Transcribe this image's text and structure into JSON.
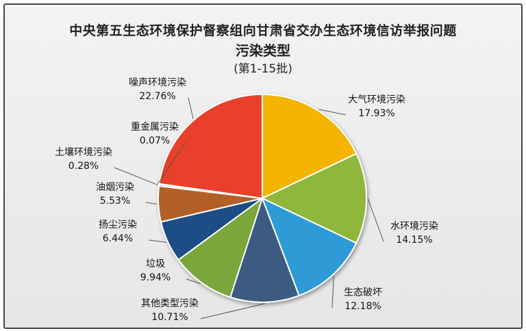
{
  "chart_data": {
    "type": "pie",
    "title": "中央第五生态环境保护督察组向甘肃省交办生态环境信访举报问题",
    "subtitle": "污染类型",
    "note": "(第1-15批)",
    "slices": [
      {
        "name": "大气环境污染",
        "value": 17.93,
        "label": "17.93%",
        "color": "#f4b400"
      },
      {
        "name": "水环境污染",
        "value": 14.15,
        "label": "14.15%",
        "color": "#8fb73a"
      },
      {
        "name": "生态破坏",
        "value": 12.18,
        "label": "12.18%",
        "color": "#2e9bd6"
      },
      {
        "name": "其他类型污染",
        "value": 10.71,
        "label": "10.71%",
        "color": "#3d5a80"
      },
      {
        "name": "垃圾",
        "value": 9.94,
        "label": "9.94%",
        "color": "#7aa63a"
      },
      {
        "name": "扬尘污染",
        "value": 6.44,
        "label": "6.44%",
        "color": "#1f4e86"
      },
      {
        "name": "油烟污染",
        "value": 5.53,
        "label": "5.53%",
        "color": "#b36128"
      },
      {
        "name": "土壤环境污染",
        "value": 0.28,
        "label": "0.28%",
        "color": "#7a8fa6"
      },
      {
        "name": "重金属污染",
        "value": 0.07,
        "label": "0.07%",
        "color": "#5a5a5a"
      },
      {
        "name": "噪声环境污染",
        "value": 22.76,
        "label": "22.76%",
        "color": "#e8412a"
      }
    ]
  }
}
